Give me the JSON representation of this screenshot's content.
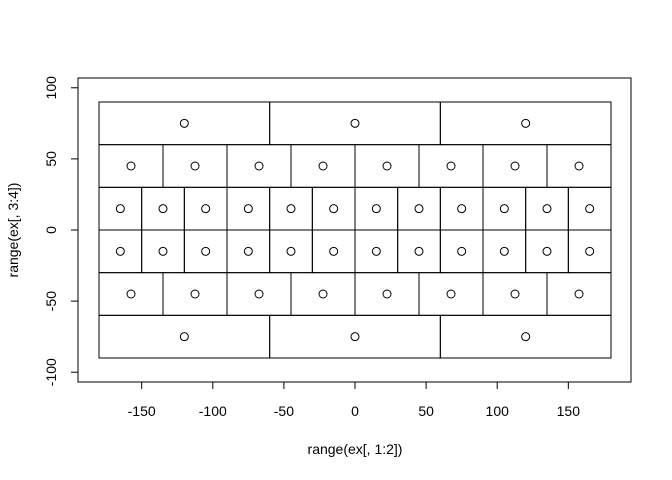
{
  "chart_data": {
    "type": "scatter",
    "xlabel": "range(ex[, 1:2])",
    "ylabel": "range(ex[, 3:4])",
    "xlim": [
      -180,
      180
    ],
    "ylim": [
      -90,
      90
    ],
    "x_ticks": [
      -150,
      -100,
      -50,
      0,
      50,
      100,
      150
    ],
    "y_ticks": [
      -100,
      -50,
      0,
      50,
      100
    ],
    "x_tick_labels": [
      "-150",
      "-100",
      "-50",
      "0",
      "50",
      "100",
      "150"
    ],
    "y_tick_labels": [
      "-100",
      "-50",
      "0",
      "50",
      "100"
    ],
    "colors": {
      "stroke": "#000000",
      "background": "#ffffff"
    },
    "rows": [
      {
        "lat_min": 60,
        "lat_max": 90,
        "n": 3
      },
      {
        "lat_min": 30,
        "lat_max": 60,
        "n": 8
      },
      {
        "lat_min": 0,
        "lat_max": 30,
        "n": 12
      },
      {
        "lat_min": -30,
        "lat_max": 0,
        "n": 12
      },
      {
        "lat_min": -60,
        "lat_max": -30,
        "n": 8
      },
      {
        "lat_min": -90,
        "lat_max": -60,
        "n": 3
      }
    ]
  }
}
